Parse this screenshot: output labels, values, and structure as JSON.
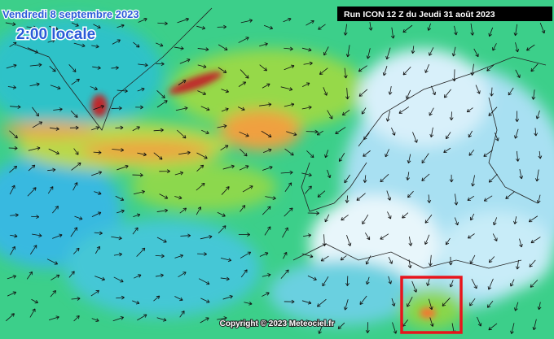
{
  "header": {
    "date": "Vendredi 8 septembre 2023",
    "time": "2:00 locale",
    "run": "Run ICON 12 Z du Jeudi 31 août 2023"
  },
  "footer": {
    "copyright": "Copyright © 2023 Meteociel.fr"
  }
}
